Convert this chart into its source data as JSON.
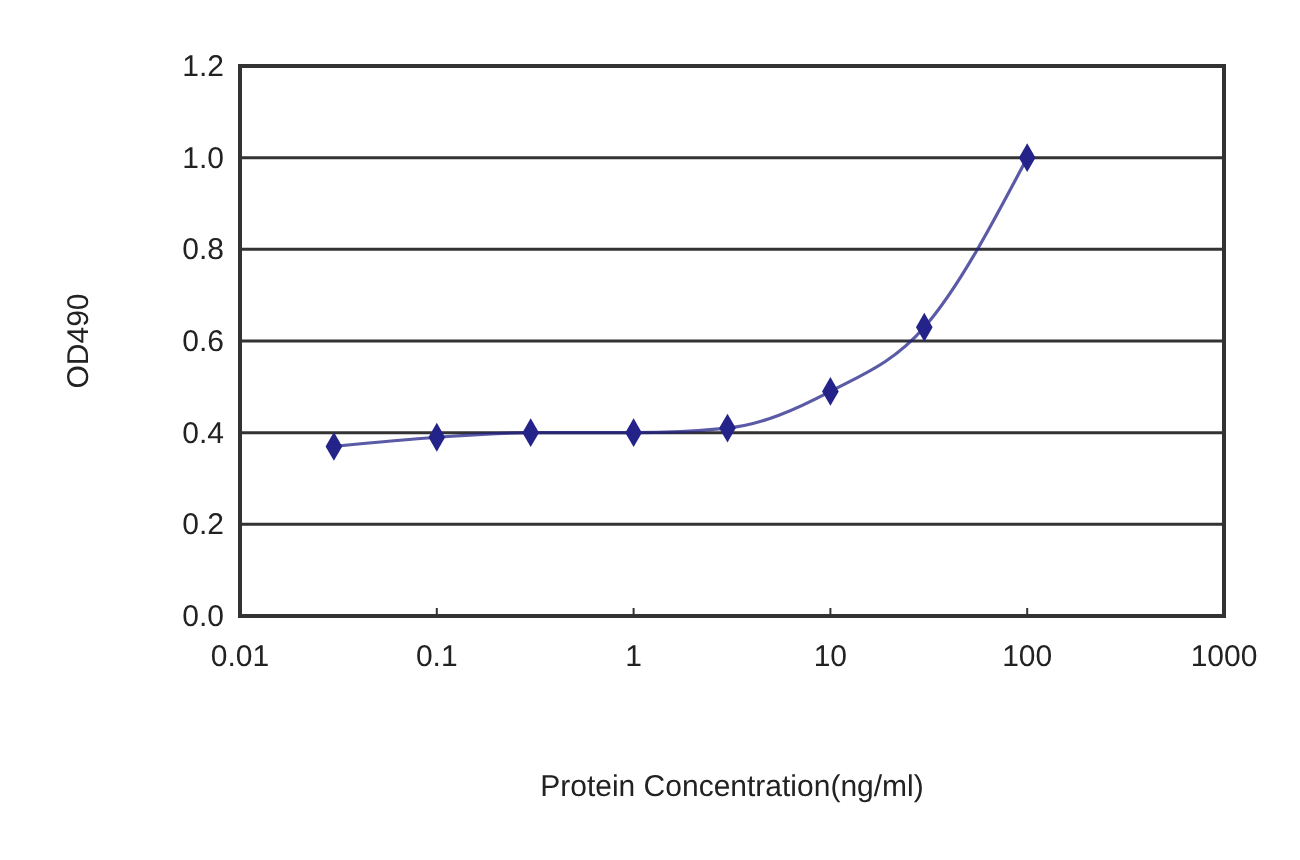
{
  "chart_data": {
    "type": "line",
    "xlabel": "Protein Concentration(ng/ml)",
    "ylabel": "OD490",
    "x": [
      0.03,
      0.1,
      0.3,
      1,
      3,
      10,
      30,
      100
    ],
    "series": [
      {
        "color": "#23238a",
        "values": [
          0.37,
          0.39,
          0.4,
          0.4,
          0.41,
          0.49,
          0.63,
          1.0
        ]
      }
    ],
    "log": "x",
    "xlim": [
      0.01,
      1000
    ],
    "xticks": [
      0.01,
      0.1,
      1,
      10,
      100,
      1000
    ],
    "ylim": [
      0,
      1.2
    ],
    "yticks": [
      {
        "value": 0,
        "label": "0.0"
      },
      0.2,
      0.4,
      0.6,
      0.8,
      {
        "value": 1,
        "label": "1.0"
      },
      1.2
    ],
    "grid": "y",
    "marker": "diamond",
    "line_style": "solid"
  }
}
